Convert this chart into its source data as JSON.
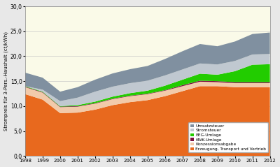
{
  "years": [
    1998,
    1999,
    2000,
    2001,
    2002,
    2003,
    2004,
    2005,
    2006,
    2007,
    2008,
    2009,
    2010,
    2011,
    2012
  ],
  "Erzeugung_Transport_Vertrieb": [
    12.4,
    11.3,
    8.6,
    8.7,
    9.3,
    10.2,
    10.8,
    11.2,
    12.0,
    13.0,
    14.0,
    14.0,
    13.8,
    13.8,
    13.8
  ],
  "Konzessionsabgabe": [
    1.4,
    1.4,
    1.2,
    1.2,
    1.2,
    1.2,
    1.2,
    1.2,
    1.1,
    1.0,
    0.9,
    0.8,
    0.8,
    0.8,
    0.8
  ],
  "KWK_Umlage": [
    0.1,
    0.1,
    0.1,
    0.1,
    0.1,
    0.1,
    0.1,
    0.1,
    0.1,
    0.2,
    0.2,
    0.2,
    0.2,
    0.2,
    0.2
  ],
  "EEG_Umlage": [
    0.1,
    0.1,
    0.1,
    0.2,
    0.3,
    0.4,
    0.5,
    0.6,
    0.9,
    1.1,
    1.4,
    1.3,
    2.2,
    3.5,
    3.6
  ],
  "Stromsteuer": [
    0.0,
    0.4,
    1.0,
    1.5,
    2.0,
    2.0,
    2.0,
    2.0,
    2.05,
    2.05,
    2.05,
    2.05,
    2.05,
    2.05,
    2.05
  ],
  "Umsatzsteuer": [
    2.7,
    2.4,
    1.9,
    2.1,
    2.4,
    2.65,
    2.8,
    2.95,
    3.3,
    3.65,
    3.9,
    3.65,
    3.9,
    4.1,
    4.3
  ],
  "colors": {
    "Erzeugung_Transport_Vertrieb": "#E8691E",
    "Konzessionsabgabe": "#F2CAAA",
    "KWK_Umlage": "#7B1040",
    "EEG_Umlage": "#22CC00",
    "Stromsteuer": "#C0C8D0",
    "Umsatzsteuer": "#8090A0"
  },
  "ylabel": "Strompreis für 3-Pers.-Haushalt (ct/kWh)",
  "ylim": [
    0,
    30
  ],
  "yticks": [
    0.0,
    5.0,
    10.0,
    15.0,
    20.0,
    25.0,
    30.0
  ],
  "fig_bg_color": "#E8E8E8",
  "plot_bg_color": "#FAFAE8"
}
